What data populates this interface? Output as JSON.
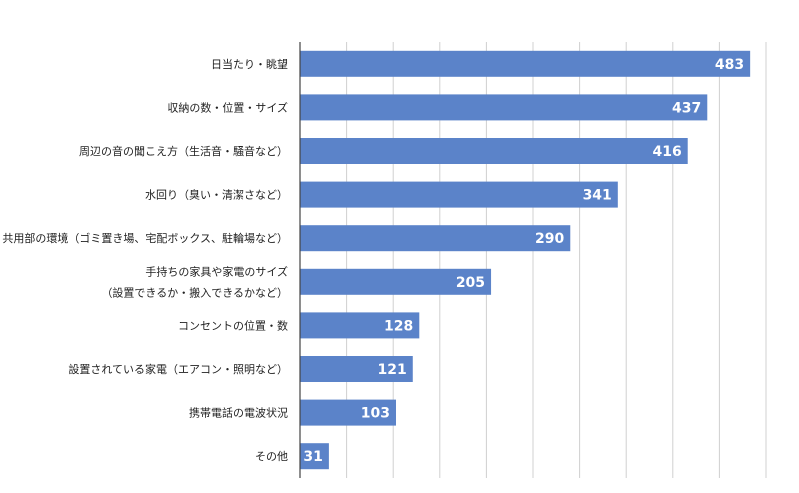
{
  "chart_data": {
    "type": "bar",
    "orientation": "horizontal",
    "categories": [
      [
        "日当たり・眺望"
      ],
      [
        "収納の数・位置・サイズ"
      ],
      [
        "周辺の音の聞こえ方（生活音・騒音など）"
      ],
      [
        "水回り（臭い・清潔さなど）"
      ],
      [
        "共用部の環境（ゴミ置き場、宅配ボックス、駐輪場など）"
      ],
      [
        "手持ちの家具や家電のサイズ",
        "（設置できるか・搬入できるかなど）"
      ],
      [
        "コンセントの位置・数"
      ],
      [
        "設置されている家電（エアコン・照明など）"
      ],
      [
        "携帯電話の電波状況"
      ],
      [
        "その他"
      ]
    ],
    "values": [
      483,
      437,
      416,
      341,
      290,
      205,
      128,
      121,
      103,
      31
    ],
    "xlim": [
      0,
      500
    ],
    "grid": true,
    "bar_color": "#5b83c9",
    "title": "",
    "xlabel": "",
    "ylabel": ""
  }
}
